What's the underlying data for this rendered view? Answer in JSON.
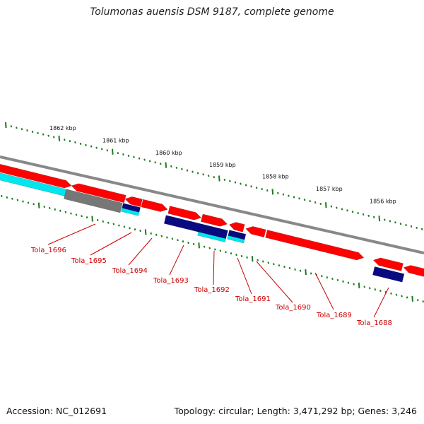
{
  "title": "Tolumonas auensis DSM 9187, complete genome",
  "footer": {
    "accession": "Accession: NC_012691",
    "topology": "Topology: circular; Length: 3,471,292 bp; Genes: 3,246"
  },
  "colors": {
    "cds": "#ff0000",
    "label": "#cc0000",
    "backbone": "#888888",
    "ticks": "#1e7a1e",
    "dark_blue": "#0a0a80",
    "cyan": "#00e5ee",
    "gray_feature": "#777777"
  },
  "scale_labels": [
    "1862 kbp",
    "1861 kbp",
    "1860 kbp",
    "1859 kbp",
    "1858 kbp",
    "1857 kbp",
    "1856 kbp"
  ],
  "genes": [
    {
      "locus": "Tola_1696"
    },
    {
      "locus": "Tola_1695"
    },
    {
      "locus": "Tola_1694"
    },
    {
      "locus": "Tola_1693"
    },
    {
      "locus": "Tola_1692"
    },
    {
      "locus": "Tola_1691"
    },
    {
      "locus": "Tola_1690"
    },
    {
      "locus": "Tola_1689"
    },
    {
      "locus": "Tola_1688"
    }
  ]
}
